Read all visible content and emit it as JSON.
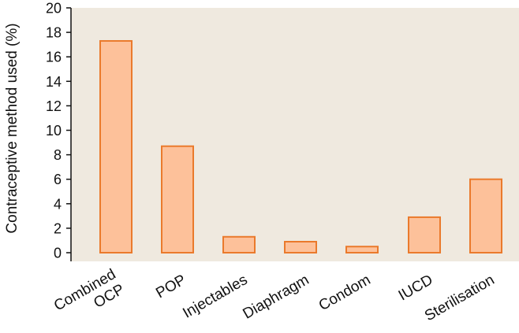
{
  "chart_data": {
    "type": "bar",
    "categories": [
      [
        "Combined",
        "OCP"
      ],
      [
        "POP"
      ],
      [
        "Injectables"
      ],
      [
        "Diaphragm"
      ],
      [
        "Condom"
      ],
      [
        "IUCD"
      ],
      [
        "Sterilisation"
      ]
    ],
    "values": [
      17.3,
      8.7,
      1.3,
      0.9,
      0.5,
      2.9,
      6.0
    ],
    "title": "",
    "xlabel": "",
    "ylabel": "Contraceptive method used (%)",
    "ylim": [
      0,
      20
    ],
    "yticks": [
      0,
      2,
      4,
      6,
      8,
      10,
      12,
      14,
      16,
      18,
      20
    ],
    "grid": false,
    "colors": {
      "plot_background": "#efe9df",
      "bar_fill": "#fdc19a",
      "bar_stroke": "#ea7a2c",
      "axis": "#111111"
    }
  }
}
